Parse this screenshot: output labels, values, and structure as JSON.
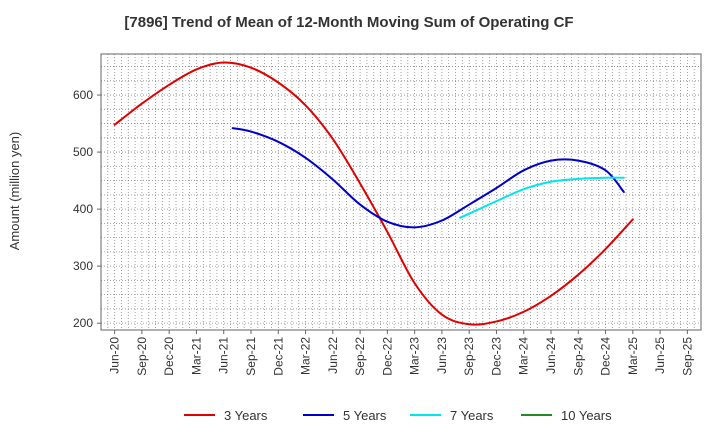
{
  "chart_data": {
    "type": "line",
    "title": "[7896]  Trend of Mean of 12-Month Moving Sum of Operating CF",
    "xlabel": "",
    "ylabel": "Amount (million yen)",
    "ylim": [
      188,
      672
    ],
    "yticks": [
      200,
      300,
      400,
      500,
      600
    ],
    "grid": true,
    "legend_position": "bottom",
    "categories": [
      "Jun-20",
      "Sep-20",
      "Dec-20",
      "Mar-21",
      "Jun-21",
      "Sep-21",
      "Dec-21",
      "Mar-22",
      "Jun-22",
      "Sep-22",
      "Dec-22",
      "Mar-23",
      "Jun-23",
      "Sep-23",
      "Dec-23",
      "Mar-24",
      "Jun-24",
      "Sep-24",
      "Dec-24",
      "Mar-25",
      "Jun-25",
      "Sep-25"
    ],
    "series": [
      {
        "name": "3 Years",
        "color": "#e00000",
        "points": [
          [
            0,
            548
          ],
          [
            1,
            585
          ],
          [
            2,
            618
          ],
          [
            3,
            645
          ],
          [
            4,
            657
          ],
          [
            5,
            648
          ],
          [
            6,
            622
          ],
          [
            7,
            582
          ],
          [
            8,
            523
          ],
          [
            9,
            445
          ],
          [
            10,
            360
          ],
          [
            11,
            270
          ],
          [
            12,
            215
          ],
          [
            13,
            198
          ],
          [
            14,
            203
          ],
          [
            15,
            220
          ],
          [
            16,
            248
          ],
          [
            17,
            285
          ],
          [
            18,
            330
          ],
          [
            19,
            382
          ]
        ]
      },
      {
        "name": "5 Years",
        "color": "#0000cc",
        "points": [
          [
            4.33,
            542
          ],
          [
            5,
            536
          ],
          [
            6,
            518
          ],
          [
            7,
            490
          ],
          [
            8,
            452
          ],
          [
            9,
            408
          ],
          [
            10,
            378
          ],
          [
            11,
            368
          ],
          [
            12,
            380
          ],
          [
            13,
            408
          ],
          [
            14,
            437
          ],
          [
            15,
            468
          ],
          [
            16,
            485
          ],
          [
            17,
            485
          ],
          [
            18,
            468
          ],
          [
            18.67,
            430
          ]
        ]
      },
      {
        "name": "7 Years",
        "color": "#00e5ee",
        "points": [
          [
            12.67,
            385
          ],
          [
            13,
            392
          ],
          [
            14,
            414
          ],
          [
            15,
            435
          ],
          [
            16,
            448
          ],
          [
            17,
            453
          ],
          [
            18,
            455
          ],
          [
            18.67,
            455
          ]
        ]
      },
      {
        "name": "10 Years",
        "color": "#228b22",
        "points": []
      }
    ]
  }
}
